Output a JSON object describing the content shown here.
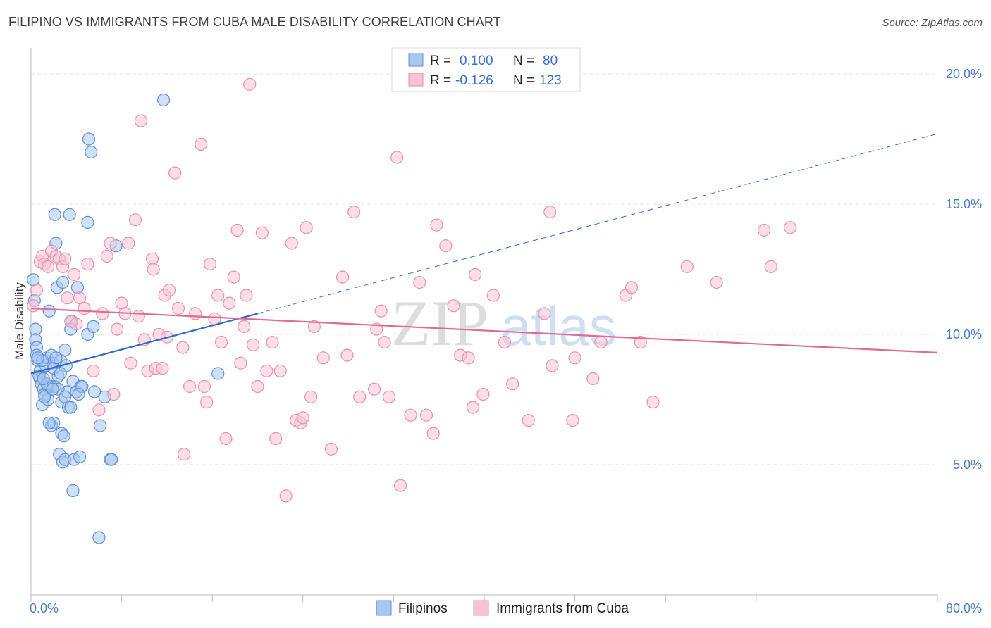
{
  "title": "FILIPINO VS IMMIGRANTS FROM CUBA MALE DISABILITY CORRELATION CHART",
  "source": "Source: ZipAtlas.com",
  "colors": {
    "blue_fill": "#a9c6f0",
    "blue_stroke": "#5b8fd6",
    "blue_line": "#2c6cc9",
    "pink_fill": "#f7c2d3",
    "pink_stroke": "#e98fae",
    "pink_line": "#e26a92",
    "tick_text": "#4a7cc6",
    "grid": "#e6e6e6"
  },
  "legend": {
    "rows": [
      {
        "r_label": "R =",
        "r_value": "0.100",
        "n_label": "N =",
        "n_value": "80"
      },
      {
        "r_label": "R =",
        "r_value": "-0.126",
        "n_label": "N =",
        "n_value": "123"
      }
    ]
  },
  "watermark": {
    "zip": "ZIP",
    "atlas": "atlas"
  },
  "chart_data": {
    "type": "scatter",
    "xlabel": "",
    "ylabel": "Male Disability",
    "xlim": [
      0,
      80
    ],
    "ylim": [
      0,
      21.0
    ],
    "x_tick_labels": [
      "0.0%",
      "80.0%"
    ],
    "y_ticks": [
      5,
      10,
      15,
      20
    ],
    "y_tick_labels": [
      "5.0%",
      "10.0%",
      "15.0%",
      "20.0%"
    ],
    "grid": true,
    "series": [
      {
        "name": "Filipinos",
        "trend": {
          "x0": 0,
          "y0": 8.5,
          "x1": 80,
          "y1": 17.7,
          "solid_until": 20
        },
        "points": [
          [
            0.2,
            12.1
          ],
          [
            0.3,
            11.3
          ],
          [
            0.4,
            10.2
          ],
          [
            0.4,
            9.8
          ],
          [
            0.5,
            9.5
          ],
          [
            0.5,
            9.2
          ],
          [
            0.6,
            9.0
          ],
          [
            0.8,
            8.6
          ],
          [
            0.8,
            8.3
          ],
          [
            0.9,
            8.1
          ],
          [
            1.0,
            7.3
          ],
          [
            1.1,
            7.9
          ],
          [
            1.2,
            7.7
          ],
          [
            1.3,
            8.8
          ],
          [
            1.4,
            9.1
          ],
          [
            1.5,
            8.0
          ],
          [
            1.5,
            7.5
          ],
          [
            1.6,
            10.9
          ],
          [
            1.7,
            8.0
          ],
          [
            1.8,
            6.5
          ],
          [
            1.8,
            9.2
          ],
          [
            1.9,
            8.9
          ],
          [
            2.0,
            6.6
          ],
          [
            2.1,
            8.0
          ],
          [
            2.1,
            14.6
          ],
          [
            2.2,
            13.5
          ],
          [
            2.3,
            11.8
          ],
          [
            2.4,
            8.4
          ],
          [
            2.5,
            5.4
          ],
          [
            2.6,
            9.0
          ],
          [
            2.7,
            6.2
          ],
          [
            2.7,
            7.4
          ],
          [
            2.8,
            12.0
          ],
          [
            2.8,
            5.1
          ],
          [
            2.9,
            6.1
          ],
          [
            3.0,
            5.2
          ],
          [
            3.0,
            9.4
          ],
          [
            3.1,
            8.8
          ],
          [
            3.2,
            7.8
          ],
          [
            3.3,
            7.2
          ],
          [
            3.4,
            14.6
          ],
          [
            3.5,
            7.2
          ],
          [
            3.6,
            10.5
          ],
          [
            3.7,
            4.0
          ],
          [
            3.7,
            8.2
          ],
          [
            3.8,
            5.2
          ],
          [
            4.0,
            7.8
          ],
          [
            4.1,
            11.8
          ],
          [
            4.3,
            5.3
          ],
          [
            4.4,
            8.0
          ],
          [
            4.5,
            8.0
          ],
          [
            5.0,
            10.0
          ],
          [
            5.0,
            14.3
          ],
          [
            5.1,
            17.5
          ],
          [
            5.3,
            17.0
          ],
          [
            5.5,
            10.3
          ],
          [
            5.6,
            7.8
          ],
          [
            6.0,
            2.2
          ],
          [
            6.1,
            6.5
          ],
          [
            6.5,
            7.6
          ],
          [
            7.0,
            5.2
          ],
          [
            7.1,
            5.2
          ],
          [
            7.5,
            13.4
          ],
          [
            11.7,
            19.0
          ],
          [
            16.5,
            8.5
          ],
          [
            0.7,
            8.4
          ],
          [
            1.0,
            9.0
          ],
          [
            1.2,
            7.6
          ],
          [
            1.4,
            8.1
          ],
          [
            1.6,
            6.6
          ],
          [
            2.0,
            8.7
          ],
          [
            2.2,
            9.1
          ],
          [
            2.4,
            7.9
          ],
          [
            2.6,
            8.5
          ],
          [
            3.0,
            7.6
          ],
          [
            3.5,
            10.2
          ],
          [
            4.2,
            7.7
          ],
          [
            1.1,
            8.3
          ],
          [
            0.6,
            9.1
          ],
          [
            1.9,
            7.9
          ]
        ]
      },
      {
        "name": "Immigrants from Cuba",
        "trend": {
          "x0": 0,
          "y0": 11.0,
          "x1": 80,
          "y1": 9.3,
          "solid_until": 80
        },
        "points": [
          [
            0.2,
            11.1
          ],
          [
            0.5,
            11.7
          ],
          [
            0.8,
            12.8
          ],
          [
            1.0,
            13.0
          ],
          [
            1.2,
            12.7
          ],
          [
            1.5,
            12.6
          ],
          [
            1.8,
            13.2
          ],
          [
            2.2,
            13.0
          ],
          [
            2.5,
            12.9
          ],
          [
            2.8,
            12.6
          ],
          [
            3.0,
            12.9
          ],
          [
            3.2,
            11.4
          ],
          [
            3.5,
            10.5
          ],
          [
            3.8,
            12.3
          ],
          [
            4.0,
            10.4
          ],
          [
            4.3,
            11.4
          ],
          [
            4.7,
            11.0
          ],
          [
            5.0,
            12.7
          ],
          [
            5.5,
            8.6
          ],
          [
            6.0,
            7.1
          ],
          [
            6.3,
            10.8
          ],
          [
            6.7,
            13.0
          ],
          [
            7.0,
            13.5
          ],
          [
            7.3,
            7.7
          ],
          [
            7.6,
            10.2
          ],
          [
            8.0,
            11.2
          ],
          [
            8.3,
            10.8
          ],
          [
            8.6,
            13.5
          ],
          [
            8.8,
            8.9
          ],
          [
            9.2,
            14.4
          ],
          [
            9.5,
            10.7
          ],
          [
            9.7,
            18.2
          ],
          [
            10.0,
            9.8
          ],
          [
            10.3,
            8.6
          ],
          [
            10.7,
            12.9
          ],
          [
            10.8,
            12.5
          ],
          [
            11.0,
            8.7
          ],
          [
            11.3,
            10.0
          ],
          [
            11.6,
            8.7
          ],
          [
            11.8,
            11.5
          ],
          [
            12.0,
            9.9
          ],
          [
            12.2,
            11.7
          ],
          [
            12.7,
            16.2
          ],
          [
            13.0,
            11.0
          ],
          [
            13.4,
            9.5
          ],
          [
            13.5,
            5.4
          ],
          [
            14.0,
            8.0
          ],
          [
            14.5,
            10.8
          ],
          [
            15.0,
            17.3
          ],
          [
            15.3,
            8.0
          ],
          [
            15.5,
            7.4
          ],
          [
            15.8,
            12.7
          ],
          [
            16.2,
            10.6
          ],
          [
            16.5,
            11.5
          ],
          [
            16.8,
            9.7
          ],
          [
            17.2,
            6.0
          ],
          [
            17.5,
            11.2
          ],
          [
            17.9,
            12.2
          ],
          [
            18.2,
            14.0
          ],
          [
            18.5,
            8.9
          ],
          [
            18.8,
            10.3
          ],
          [
            19.0,
            11.5
          ],
          [
            19.3,
            19.6
          ],
          [
            19.6,
            9.6
          ],
          [
            20.0,
            8.0
          ],
          [
            20.4,
            13.9
          ],
          [
            20.8,
            8.6
          ],
          [
            21.3,
            9.7
          ],
          [
            21.6,
            6.0
          ],
          [
            22.0,
            8.6
          ],
          [
            22.5,
            3.8
          ],
          [
            23.0,
            13.5
          ],
          [
            23.4,
            6.7
          ],
          [
            23.8,
            6.6
          ],
          [
            24.0,
            6.8
          ],
          [
            24.3,
            14.1
          ],
          [
            24.7,
            7.6
          ],
          [
            25.0,
            10.3
          ],
          [
            25.8,
            9.1
          ],
          [
            26.5,
            5.6
          ],
          [
            27.5,
            12.2
          ],
          [
            27.9,
            9.2
          ],
          [
            28.5,
            14.7
          ],
          [
            29.0,
            7.6
          ],
          [
            30.3,
            7.9
          ],
          [
            30.5,
            10.2
          ],
          [
            30.9,
            10.9
          ],
          [
            31.2,
            9.7
          ],
          [
            31.6,
            7.6
          ],
          [
            32.3,
            16.8
          ],
          [
            32.6,
            4.2
          ],
          [
            33.5,
            6.9
          ],
          [
            34.3,
            12.0
          ],
          [
            34.9,
            6.9
          ],
          [
            35.5,
            6.2
          ],
          [
            35.8,
            14.2
          ],
          [
            36.6,
            13.4
          ],
          [
            37.3,
            11.1
          ],
          [
            37.9,
            9.2
          ],
          [
            38.6,
            9.1
          ],
          [
            39.0,
            7.2
          ],
          [
            39.2,
            12.3
          ],
          [
            39.9,
            7.7
          ],
          [
            40.8,
            11.5
          ],
          [
            41.8,
            9.7
          ],
          [
            42.5,
            8.1
          ],
          [
            43.9,
            6.7
          ],
          [
            45.3,
            10.8
          ],
          [
            45.8,
            14.7
          ],
          [
            46.0,
            8.8
          ],
          [
            47.8,
            6.7
          ],
          [
            48.0,
            9.1
          ],
          [
            49.6,
            8.3
          ],
          [
            50.3,
            9.7
          ],
          [
            52.5,
            11.5
          ],
          [
            53.0,
            11.8
          ],
          [
            53.8,
            9.7
          ],
          [
            54.9,
            7.4
          ],
          [
            57.9,
            12.6
          ],
          [
            60.5,
            12.0
          ],
          [
            64.7,
            14.0
          ],
          [
            65.3,
            12.6
          ],
          [
            67.0,
            14.1
          ]
        ]
      }
    ]
  }
}
